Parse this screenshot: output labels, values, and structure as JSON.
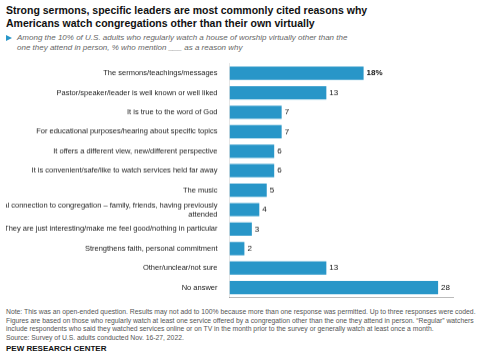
{
  "chart_data": {
    "type": "bar",
    "orientation": "horizontal",
    "title": "Strong sermons, specific leaders are most commonly cited reasons why\nAmericans watch congregations other than their own virtually",
    "subtitle": "Among the 10% of U.S. adults who regularly watch a house of worship virtually other than the\none they attend in person, % who mention ___ as a reason why",
    "categories": [
      "The sermons/teachings/messages",
      "Pastor/speaker/leader is well known or well liked",
      "It is true to the word of God",
      "For educational purposes/hearing about specific topics",
      "It offers a different view, new/different perspective",
      "It is convenient/safe/like to watch services held far away",
      "The music",
      "Personal connection to congregation – family, friends, having previously attended",
      "They are just interesting/make me feel good/nothing in particular",
      "Strengthens faith, personal commitment",
      "Other/unclear/not sure",
      "No answer"
    ],
    "values": [
      18,
      13,
      7,
      7,
      6,
      6,
      5,
      4,
      3,
      2,
      13,
      28
    ],
    "value_labels": [
      "18%",
      "13",
      "7",
      "7",
      "6",
      "6",
      "5",
      "4",
      "3",
      "2",
      "13",
      "28"
    ],
    "color": "#2896C8",
    "xlim": [
      0,
      30
    ],
    "tick_labels": "y",
    "data_labels": true,
    "grid": false,
    "annotations": [
      "Note: This was an open-ended question. Results may not add to 100% because more than one response was permitted. Up to three responses were coded. Figures are based on those who regularly watch at least one service offered by a congregation other than the one they attend in person. “Regular” watchers include respondents who said they watched services online or on TV in the month prior to the survey or generally watch at least once a month.\nSource: Survey of U.S. adults conducted Nov. 16-27, 2022.",
      "PEW RESEARCH CENTER"
    ]
  }
}
